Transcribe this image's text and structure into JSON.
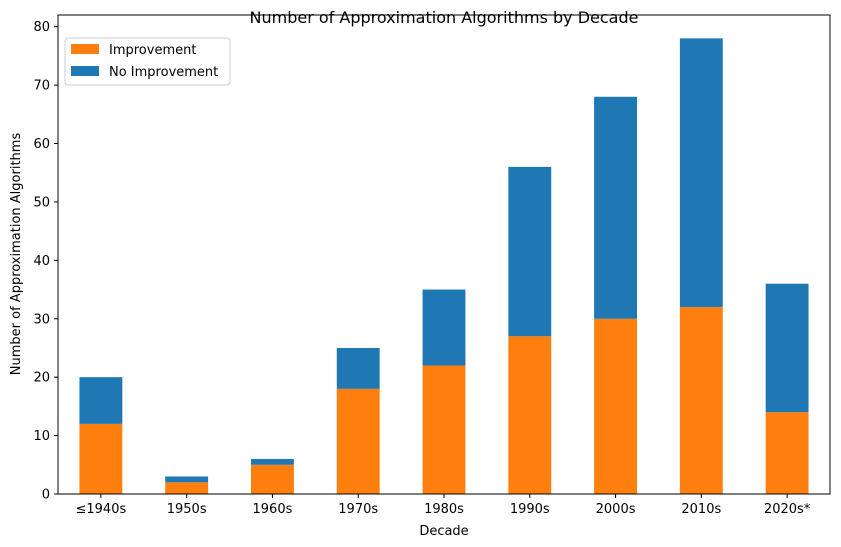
{
  "chart_data": {
    "type": "bar",
    "stacked": true,
    "title": "Number of Approximation Algorithms by Decade",
    "xlabel": "Decade",
    "ylabel": "Number of Approximation Algorithms",
    "categories": [
      "≤1940s",
      "1950s",
      "1960s",
      "1970s",
      "1980s",
      "1990s",
      "2000s",
      "2010s",
      "2020s*"
    ],
    "ylim": [
      0,
      82
    ],
    "yticks": [
      0,
      10,
      20,
      30,
      40,
      50,
      60,
      70,
      80
    ],
    "grid": false,
    "legend_position": "top-left",
    "series": [
      {
        "name": "Improvement",
        "color": "#ff7f0e",
        "values": [
          12,
          2,
          5,
          18,
          22,
          27,
          30,
          32,
          14
        ]
      },
      {
        "name": "No Improvement",
        "color": "#1f77b4",
        "values": [
          8,
          1,
          1,
          7,
          13,
          29,
          38,
          46,
          22
        ]
      }
    ]
  }
}
